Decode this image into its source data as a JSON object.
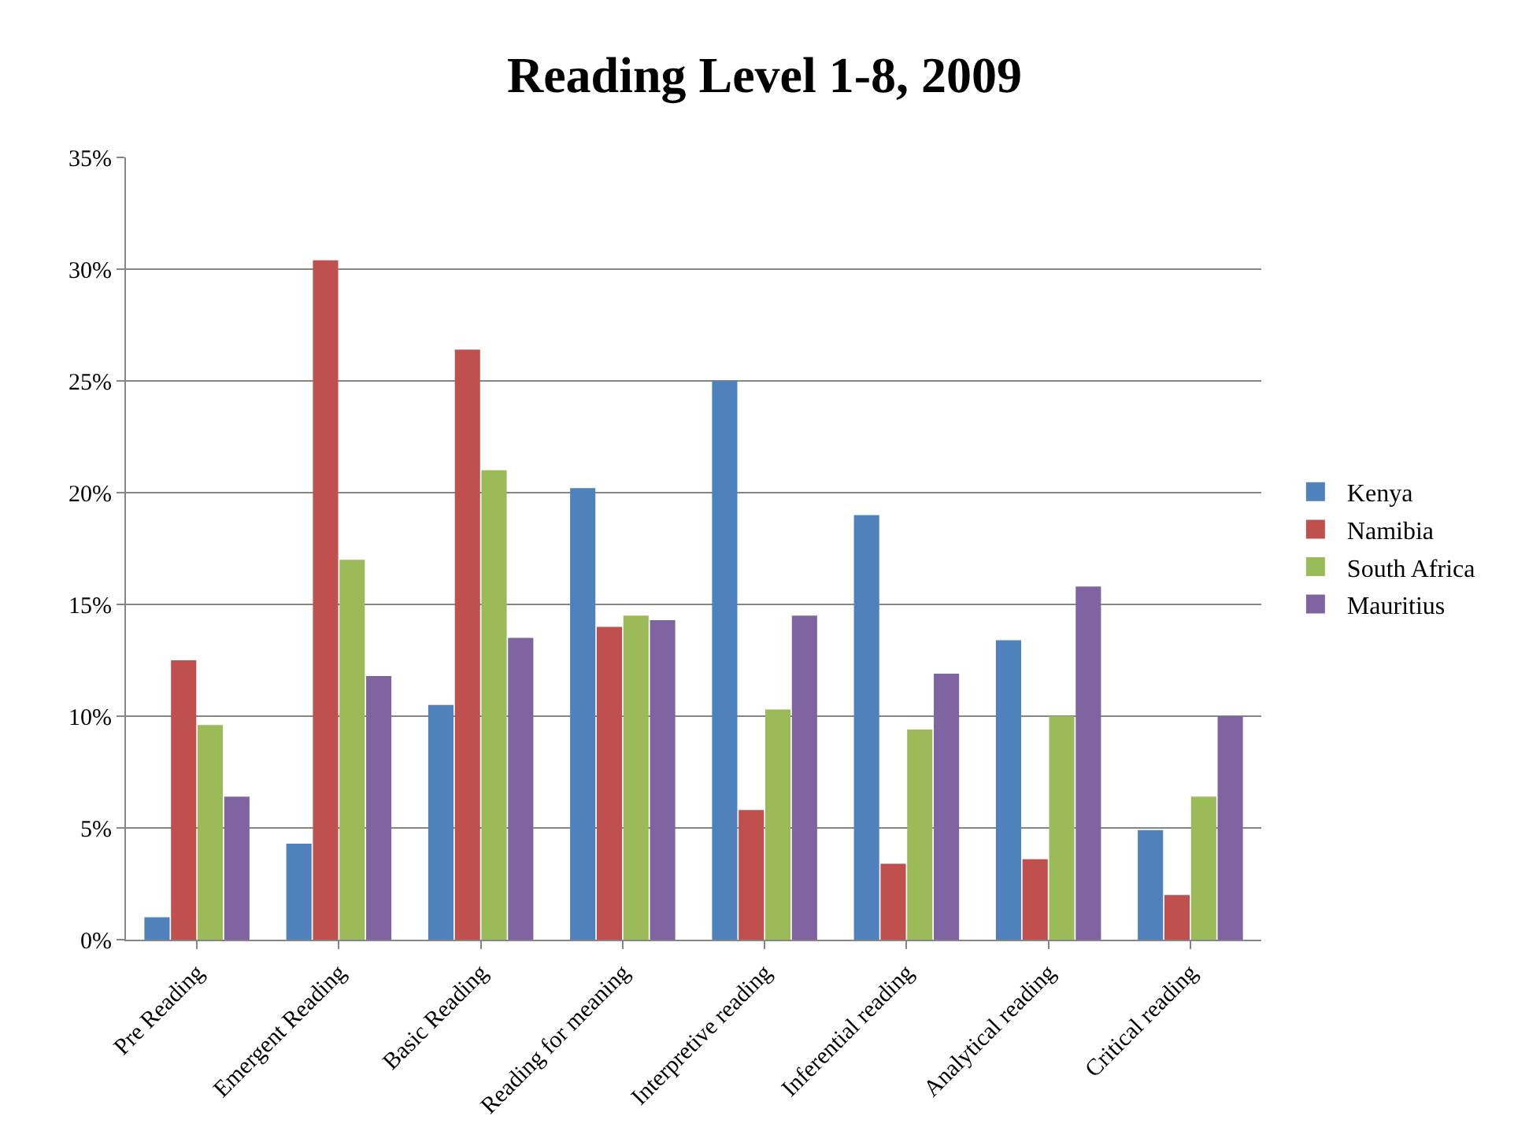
{
  "chart_data": {
    "type": "bar",
    "title": "Reading Level 1-8, 2009",
    "categories": [
      "Pre Reading",
      "Emergent Reading",
      "Basic Reading",
      "Reading for meaning",
      "Interpretive reading",
      "Inferential reading",
      "Analytical reading",
      "Critical reading"
    ],
    "series": [
      {
        "name": "Kenya",
        "color": "#4f81bd",
        "values": [
          1,
          4.3,
          10.5,
          20.2,
          25,
          19,
          13.4,
          4.9
        ]
      },
      {
        "name": "Namibia",
        "color": "#c0504d",
        "values": [
          12.5,
          30.4,
          26.4,
          14,
          5.8,
          3.4,
          3.6,
          2
        ]
      },
      {
        "name": "South Africa",
        "color": "#9bbb59",
        "values": [
          9.6,
          17,
          21,
          14.5,
          10.3,
          9.4,
          10,
          6.4
        ]
      },
      {
        "name": "Mauritius",
        "color": "#8064a2",
        "values": [
          6.4,
          11.8,
          13.5,
          14.3,
          14.5,
          11.9,
          15.8,
          10
        ]
      }
    ],
    "ylim": [
      0,
      35
    ],
    "yticks": [
      {
        "value": 0,
        "label": "0%"
      },
      {
        "value": 5,
        "label": "5%"
      },
      {
        "value": 10,
        "label": "10%"
      },
      {
        "value": 15,
        "label": "15%"
      },
      {
        "value": 20,
        "label": "20%"
      },
      {
        "value": 25,
        "label": "25%"
      },
      {
        "value": 30,
        "label": "30%"
      },
      {
        "value": 35,
        "label": "35%"
      }
    ],
    "grid": "y",
    "legend": "right"
  }
}
